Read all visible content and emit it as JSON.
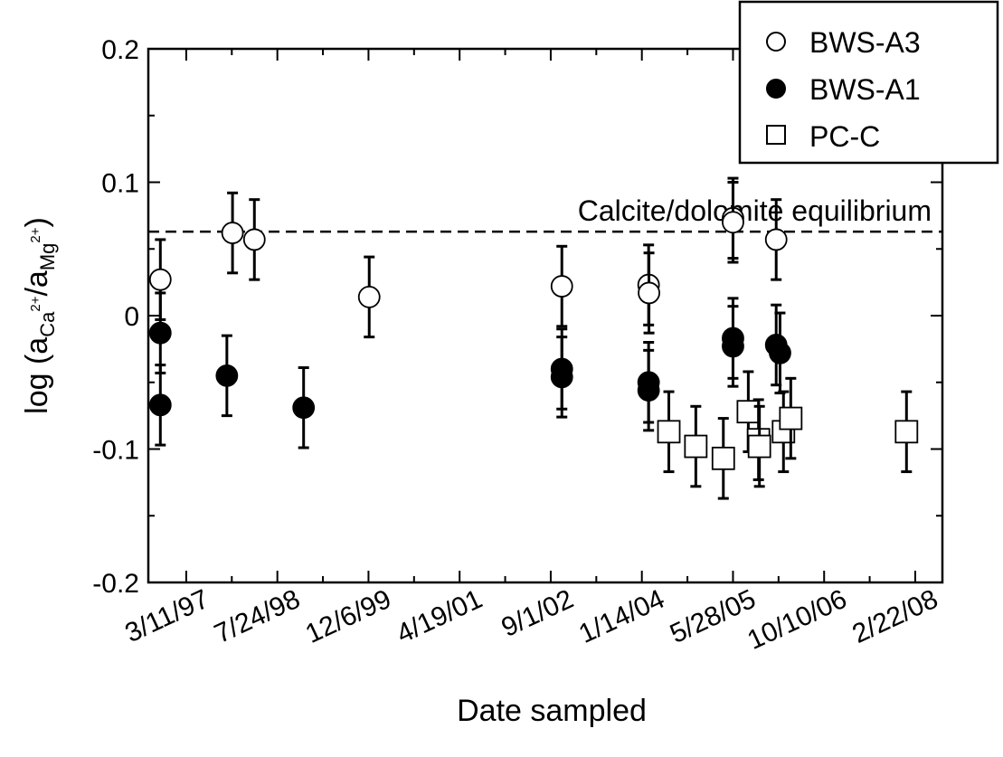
{
  "chart_data": {
    "type": "scatter",
    "xlabel": "Date sampled",
    "ylabel": {
      "prefix": "log (a",
      "sub1": "Ca",
      "sup1": "2+",
      "mid": "/a",
      "sub2": "Mg",
      "sup2": "2+",
      "suffix": ")"
    },
    "xlim": [
      "1996-08-15",
      "2008-07-20"
    ],
    "ylim": [
      -0.2,
      0.2
    ],
    "x_ticks": [
      {
        "label": "3/11/97",
        "date": "1997-03-11"
      },
      {
        "label": "7/24/98",
        "date": "1998-07-24"
      },
      {
        "label": "12/6/99",
        "date": "1999-12-06"
      },
      {
        "label": "4/19/01",
        "date": "2001-04-19"
      },
      {
        "label": "9/1/02",
        "date": "2002-09-01"
      },
      {
        "label": "1/14/04",
        "date": "2004-01-14"
      },
      {
        "label": "5/28/05",
        "date": "2005-05-28"
      },
      {
        "label": "10/10/06",
        "date": "2006-10-10"
      },
      {
        "label": "2/22/08",
        "date": "2008-02-22"
      }
    ],
    "y_ticks": [
      {
        "label": "0.2",
        "value": 0.2
      },
      {
        "label": "0.1",
        "value": 0.1
      },
      {
        "label": "0",
        "value": 0
      },
      {
        "label": "-0.1",
        "value": -0.1
      },
      {
        "label": "-0.2",
        "value": -0.2
      }
    ],
    "reference_line": {
      "label": "Calcite/dolomite equilibrium",
      "value": 0.063
    },
    "error_bar": 0.03,
    "legend_position": "top-right",
    "series": [
      {
        "name": "BWS-A3",
        "marker": "open-circle",
        "points": [
          {
            "date": "1996-10-20",
            "y": 0.027
          },
          {
            "date": "1997-11-20",
            "y": 0.062
          },
          {
            "date": "1998-03-20",
            "y": 0.057
          },
          {
            "date": "1999-12-10",
            "y": 0.014
          },
          {
            "date": "2002-11-01",
            "y": 0.022
          },
          {
            "date": "2004-02-20",
            "y": 0.023
          },
          {
            "date": "2004-02-22",
            "y": 0.017
          },
          {
            "date": "2005-05-28",
            "y": 0.073
          },
          {
            "date": "2005-05-28",
            "y": 0.07
          },
          {
            "date": "2006-01-20",
            "y": 0.057
          }
        ]
      },
      {
        "name": "BWS-A1",
        "marker": "filled-circle",
        "points": [
          {
            "date": "1996-10-20",
            "y": -0.013
          },
          {
            "date": "1996-10-20",
            "y": -0.067
          },
          {
            "date": "1997-10-20",
            "y": -0.045
          },
          {
            "date": "1998-12-15",
            "y": -0.069
          },
          {
            "date": "2002-11-01",
            "y": -0.04
          },
          {
            "date": "2002-11-01",
            "y": -0.046
          },
          {
            "date": "2004-02-20",
            "y": -0.05
          },
          {
            "date": "2004-02-20",
            "y": -0.056
          },
          {
            "date": "2005-05-28",
            "y": -0.017
          },
          {
            "date": "2005-05-28",
            "y": -0.023
          },
          {
            "date": "2006-01-20",
            "y": -0.022
          },
          {
            "date": "2006-02-10",
            "y": -0.028
          }
        ]
      },
      {
        "name": "PC-C",
        "marker": "open-square",
        "points": [
          {
            "date": "2004-06-10",
            "y": -0.087
          },
          {
            "date": "2004-11-05",
            "y": -0.098
          },
          {
            "date": "2005-04-05",
            "y": -0.107
          },
          {
            "date": "2005-08-20",
            "y": -0.072
          },
          {
            "date": "2005-10-15",
            "y": -0.093
          },
          {
            "date": "2005-10-20",
            "y": -0.098
          },
          {
            "date": "2006-03-01",
            "y": -0.087
          },
          {
            "date": "2006-04-10",
            "y": -0.077
          },
          {
            "date": "2008-01-05",
            "y": -0.087
          }
        ]
      }
    ]
  }
}
